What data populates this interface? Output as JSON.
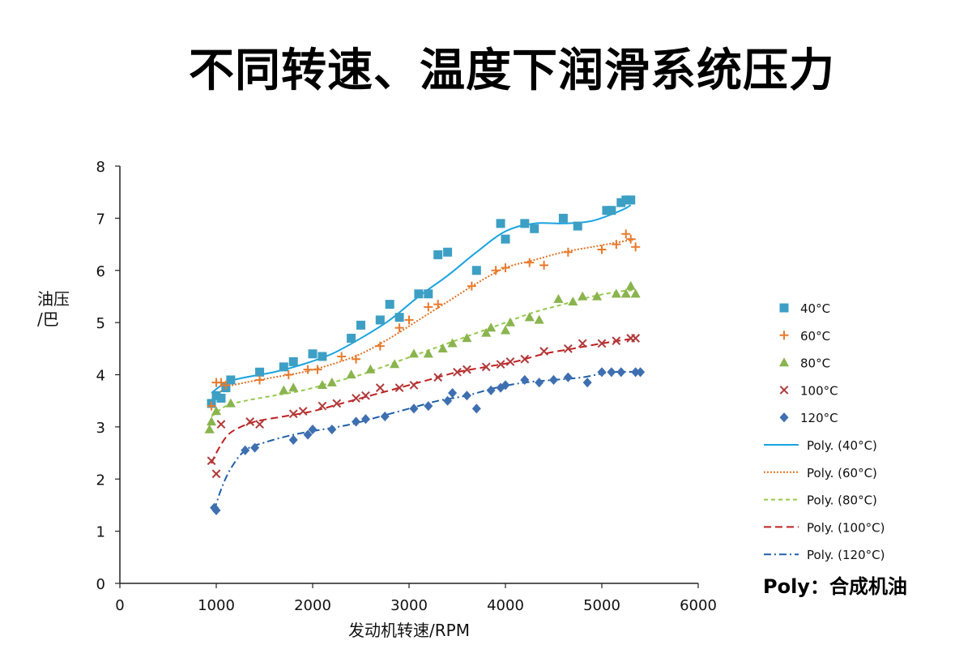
{
  "title": "不同转速、温度下润滑系统压力",
  "footnote": "Poly：合成机油",
  "chart_data": {
    "type": "scatter",
    "xlabel": "发动机转速/RPM",
    "ylabel_line1": "油压",
    "ylabel_line2": "/巴",
    "xlim": [
      0,
      6000
    ],
    "ylim": [
      0,
      8
    ],
    "xticks": [
      "0",
      "1000",
      "2000",
      "3000",
      "4000",
      "5000",
      "6000"
    ],
    "yticks": [
      "0",
      "1",
      "2",
      "3",
      "4",
      "5",
      "6",
      "7",
      "8"
    ],
    "grid": false,
    "legend_position": "right",
    "series": [
      {
        "name": "40°C",
        "marker": "square",
        "color": "#3d9fc4",
        "x": [
          950,
          1000,
          1050,
          1100,
          1150,
          1450,
          1700,
          1800,
          2000,
          2100,
          2400,
          2500,
          2700,
          2800,
          2900,
          3100,
          3200,
          3300,
          3400,
          3700,
          3950,
          4000,
          4200,
          4300,
          4600,
          4750,
          5050,
          5100,
          5200,
          5250,
          5300
        ],
        "y": [
          3.45,
          3.6,
          3.55,
          3.75,
          3.9,
          4.05,
          4.15,
          4.25,
          4.4,
          4.35,
          4.7,
          4.95,
          5.05,
          5.35,
          5.1,
          5.55,
          5.55,
          6.3,
          6.35,
          6.0,
          6.9,
          6.6,
          6.9,
          6.8,
          7.0,
          6.85,
          7.15,
          7.15,
          7.3,
          7.35,
          7.35
        ]
      },
      {
        "name": "60°C",
        "marker": "plus",
        "color": "#e87a2c",
        "x": [
          950,
          1000,
          1050,
          1100,
          1450,
          1750,
          1950,
          2050,
          2300,
          2450,
          2700,
          2900,
          3000,
          3200,
          3300,
          3650,
          3900,
          4000,
          4250,
          4400,
          4650,
          5000,
          5150,
          5250,
          5300,
          5350
        ],
        "y": [
          3.4,
          3.85,
          3.85,
          3.8,
          3.9,
          4.0,
          4.1,
          4.1,
          4.35,
          4.3,
          4.55,
          4.9,
          5.05,
          5.3,
          5.35,
          5.7,
          6.0,
          6.05,
          6.15,
          6.1,
          6.35,
          6.4,
          6.5,
          6.7,
          6.6,
          6.45
        ]
      },
      {
        "name": "80°C",
        "marker": "triangle",
        "color": "#8ab44e",
        "x": [
          930,
          950,
          1000,
          1150,
          1700,
          1800,
          2100,
          2200,
          2400,
          2600,
          2850,
          3050,
          3200,
          3350,
          3450,
          3600,
          3800,
          3850,
          4000,
          4050,
          4250,
          4350,
          4550,
          4700,
          4800,
          4950,
          5150,
          5250,
          5300,
          5350
        ],
        "y": [
          2.95,
          3.1,
          3.3,
          3.45,
          3.7,
          3.75,
          3.8,
          3.85,
          4.0,
          4.1,
          4.2,
          4.4,
          4.4,
          4.5,
          4.6,
          4.7,
          4.8,
          4.9,
          4.85,
          5.0,
          5.1,
          5.05,
          5.45,
          5.4,
          5.5,
          5.5,
          5.55,
          5.55,
          5.7,
          5.55
        ]
      },
      {
        "name": "100°C",
        "marker": "x",
        "color": "#b03a3a",
        "x": [
          950,
          1000,
          1050,
          1350,
          1450,
          1800,
          1900,
          2100,
          2250,
          2450,
          2550,
          2700,
          2900,
          3050,
          3300,
          3500,
          3600,
          3800,
          3950,
          4050,
          4200,
          4400,
          4650,
          4800,
          5000,
          5150,
          5300,
          5350
        ],
        "y": [
          2.35,
          2.1,
          3.05,
          3.1,
          3.05,
          3.25,
          3.3,
          3.4,
          3.45,
          3.55,
          3.6,
          3.75,
          3.75,
          3.8,
          3.95,
          4.05,
          4.1,
          4.15,
          4.2,
          4.25,
          4.3,
          4.45,
          4.5,
          4.6,
          4.6,
          4.65,
          4.7,
          4.7
        ]
      },
      {
        "name": "120°C",
        "marker": "diamond",
        "color": "#3e6fb0",
        "x": [
          980,
          1000,
          1300,
          1400,
          1800,
          1950,
          2000,
          2200,
          2450,
          2550,
          2750,
          3050,
          3200,
          3400,
          3450,
          3600,
          3700,
          3850,
          3950,
          4000,
          4200,
          4350,
          4500,
          4650,
          4850,
          5000,
          5100,
          5200,
          5350,
          5400
        ],
        "y": [
          1.45,
          1.4,
          2.55,
          2.6,
          2.75,
          2.85,
          2.95,
          2.95,
          3.1,
          3.15,
          3.2,
          3.35,
          3.4,
          3.5,
          3.65,
          3.6,
          3.35,
          3.7,
          3.75,
          3.8,
          3.9,
          3.85,
          3.9,
          3.95,
          3.85,
          4.05,
          4.05,
          4.05,
          4.05,
          4.05
        ]
      },
      {
        "name": "Poly. (40°C)",
        "line_style": "solid",
        "color": "#1aa3e0",
        "x": [
          950,
          1100,
          1300,
          1600,
          1900,
          2200,
          2500,
          2800,
          3100,
          3400,
          3700,
          4000,
          4300,
          4600,
          4900,
          5200,
          5300
        ],
        "y": [
          3.65,
          3.85,
          3.95,
          4.05,
          4.2,
          4.4,
          4.7,
          5.05,
          5.5,
          5.9,
          6.35,
          6.75,
          6.9,
          6.9,
          6.95,
          7.15,
          7.25
        ]
      },
      {
        "name": "Poly. (60°C)",
        "line_style": "dotted",
        "color": "#e07020",
        "x": [
          950,
          1100,
          1300,
          1600,
          1900,
          2200,
          2500,
          2800,
          3100,
          3400,
          3700,
          4000,
          4300,
          4600,
          4900,
          5200,
          5350
        ],
        "y": [
          3.5,
          3.75,
          3.85,
          3.95,
          4.05,
          4.2,
          4.4,
          4.7,
          5.05,
          5.4,
          5.75,
          6.05,
          6.2,
          6.35,
          6.45,
          6.55,
          6.6
        ]
      },
      {
        "name": "Poly. (80°C)",
        "line_style": "short-dash",
        "color": "#96c84a",
        "x": [
          950,
          1100,
          1300,
          1600,
          1900,
          2200,
          2500,
          2800,
          3100,
          3400,
          3700,
          4000,
          4300,
          4600,
          4900,
          5200,
          5350
        ],
        "y": [
          3.2,
          3.4,
          3.5,
          3.6,
          3.7,
          3.85,
          4.0,
          4.2,
          4.4,
          4.6,
          4.8,
          5.0,
          5.2,
          5.35,
          5.5,
          5.6,
          5.62
        ]
      },
      {
        "name": "Poly. (100°C)",
        "line_style": "dash",
        "color": "#c02020",
        "x": [
          950,
          1000,
          1100,
          1200,
          1400,
          1700,
          2000,
          2300,
          2600,
          2900,
          3200,
          3500,
          3800,
          4100,
          4400,
          4700,
          5000,
          5350
        ],
        "y": [
          2.3,
          2.5,
          2.8,
          2.95,
          3.1,
          3.2,
          3.3,
          3.45,
          3.6,
          3.75,
          3.9,
          4.05,
          4.15,
          4.25,
          4.4,
          4.5,
          4.6,
          4.7
        ]
      },
      {
        "name": "Poly. (120°C)",
        "line_style": "dash-dot",
        "color": "#2060a8",
        "x": [
          980,
          1050,
          1150,
          1300,
          1500,
          1800,
          2100,
          2400,
          2700,
          3000,
          3300,
          3600,
          3900,
          4200,
          4500,
          4800,
          5100,
          5400
        ],
        "y": [
          1.4,
          1.8,
          2.2,
          2.55,
          2.7,
          2.85,
          2.95,
          3.05,
          3.2,
          3.35,
          3.5,
          3.6,
          3.75,
          3.85,
          3.9,
          3.95,
          4.05,
          4.05
        ]
      }
    ]
  }
}
